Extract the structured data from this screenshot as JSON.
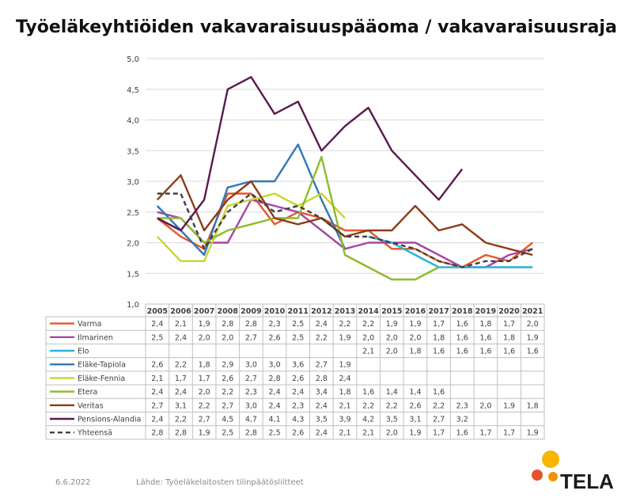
{
  "title": "Työeläkeyhtiöiden vakavaraisuuspääoma / vakavaraisuusraja",
  "footer": {
    "date": "6.6.2022",
    "source": "Lähde: Työeläkelaitosten tilinpäätösliitteet"
  },
  "logo": {
    "text": "TELA",
    "colors": [
      "#e5532b",
      "#f39200",
      "#f7b500"
    ]
  },
  "chart_data": {
    "type": "line",
    "title": "Työeläkeyhtiöiden vakavaraisuuspääoma / vakavaraisuusraja",
    "x": [
      "2005",
      "2006",
      "2007",
      "2008",
      "2009",
      "2010",
      "2011",
      "2012",
      "2013",
      "2014",
      "2015",
      "2016",
      "2017",
      "2018",
      "2019",
      "2020",
      "2021"
    ],
    "ylim": [
      1.0,
      5.0
    ],
    "yticks": [
      "1,0",
      "1,5",
      "2,0",
      "2,5",
      "3,0",
      "3,5",
      "4,0",
      "4,5",
      "5,0"
    ],
    "grid": true,
    "legend": "data-table-below",
    "series": [
      {
        "name": "Varma",
        "color": "#e8562a",
        "dash": false,
        "values": [
          2.4,
          2.1,
          1.9,
          2.8,
          2.8,
          2.3,
          2.5,
          2.4,
          2.2,
          2.2,
          1.9,
          1.9,
          1.7,
          1.6,
          1.8,
          1.7,
          2.0
        ]
      },
      {
        "name": "Ilmarinen",
        "color": "#a546a3",
        "dash": false,
        "values": [
          2.5,
          2.4,
          2.0,
          2.0,
          2.7,
          2.6,
          2.5,
          2.2,
          1.9,
          2.0,
          2.0,
          2.0,
          1.8,
          1.6,
          1.6,
          1.8,
          1.9
        ]
      },
      {
        "name": "Elo",
        "color": "#29b2da",
        "dash": false,
        "values": [
          null,
          null,
          null,
          null,
          null,
          null,
          null,
          null,
          null,
          2.1,
          2.0,
          1.8,
          1.6,
          1.6,
          1.6,
          1.6,
          1.6
        ]
      },
      {
        "name": "Eläke-Tapiola",
        "color": "#2f78b8",
        "dash": false,
        "values": [
          2.6,
          2.2,
          1.8,
          2.9,
          3.0,
          3.0,
          3.6,
          2.7,
          1.9,
          null,
          null,
          null,
          null,
          null,
          null,
          null,
          null
        ]
      },
      {
        "name": "Eläke-Fennia",
        "color": "#c8d62b",
        "dash": false,
        "values": [
          2.1,
          1.7,
          1.7,
          2.6,
          2.7,
          2.8,
          2.6,
          2.8,
          2.4,
          null,
          null,
          null,
          null,
          null,
          null,
          null,
          null
        ]
      },
      {
        "name": "Etera",
        "color": "#8dbb2b",
        "dash": false,
        "values": [
          2.4,
          2.4,
          2.0,
          2.2,
          2.3,
          2.4,
          2.4,
          3.4,
          1.8,
          1.6,
          1.4,
          1.4,
          1.6,
          null,
          null,
          null,
          null
        ]
      },
      {
        "name": "Veritas",
        "color": "#8e3b18",
        "dash": false,
        "values": [
          2.7,
          3.1,
          2.2,
          2.7,
          3.0,
          2.4,
          2.3,
          2.4,
          2.1,
          2.2,
          2.2,
          2.6,
          2.2,
          2.3,
          2.0,
          1.9,
          1.8
        ]
      },
      {
        "name": "Pensions-Alandia",
        "color": "#5a1a4e",
        "dash": false,
        "values": [
          2.4,
          2.2,
          2.7,
          4.5,
          4.7,
          4.1,
          4.3,
          3.5,
          3.9,
          4.2,
          3.5,
          3.1,
          2.7,
          3.2,
          null,
          null,
          null
        ]
      },
      {
        "name": "Yhteensä",
        "color": "#404040",
        "dash": true,
        "values": [
          2.8,
          2.8,
          1.9,
          2.5,
          2.8,
          2.5,
          2.6,
          2.4,
          2.1,
          2.1,
          2.0,
          1.9,
          1.7,
          1.6,
          1.7,
          1.7,
          1.9
        ]
      }
    ]
  }
}
